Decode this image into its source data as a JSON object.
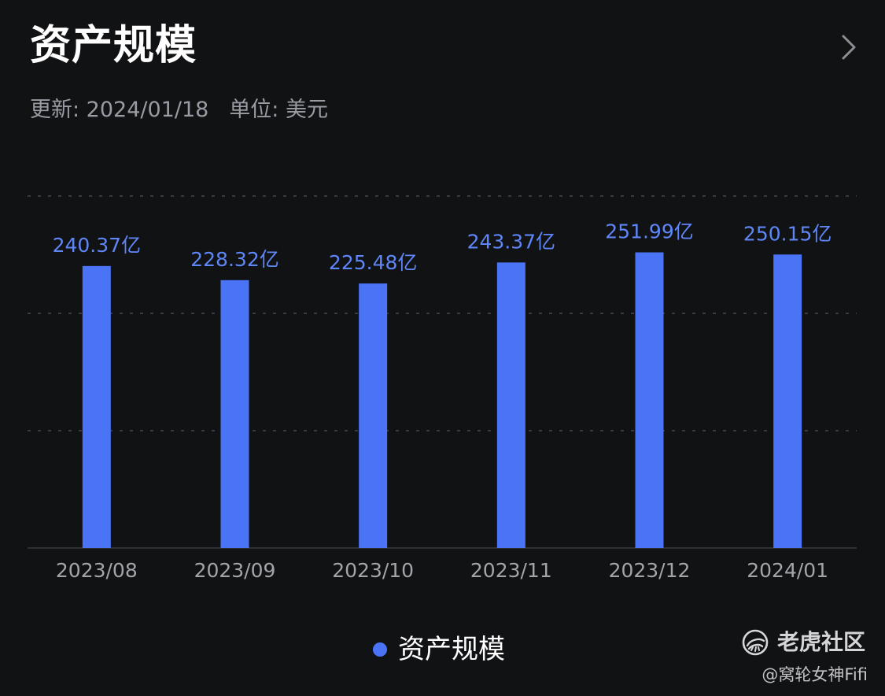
{
  "header": {
    "title": "资产规模",
    "updated_label": "更新: 2024/01/18",
    "unit_label": "单位: 美元"
  },
  "icons": {
    "detail": "chevron-right-icon"
  },
  "colors": {
    "background": "#111214",
    "bar": "#4a74f5",
    "value_label": "#5f86f7",
    "axis_label": "#a3a5ab",
    "grid": "#3a3b40"
  },
  "chart_data": {
    "type": "bar",
    "categories": [
      "2023/08",
      "2023/09",
      "2023/10",
      "2023/11",
      "2023/12",
      "2024/01"
    ],
    "series": [
      {
        "name": "资产规模",
        "values": [
          240.37,
          228.32,
          225.48,
          243.37,
          251.99,
          250.15
        ],
        "value_labels": [
          "240.37亿",
          "228.32亿",
          "225.48亿",
          "243.37亿",
          "251.99亿",
          "250.15亿"
        ]
      }
    ],
    "value_unit": "亿",
    "ylim": [
      0,
      300
    ],
    "grid": "dashed-horizontal",
    "legend_position": "bottom-center"
  },
  "legend": {
    "label": "资产规模"
  },
  "watermark": {
    "brand": "老虎社区",
    "user": "@窝轮女神Fifi"
  }
}
